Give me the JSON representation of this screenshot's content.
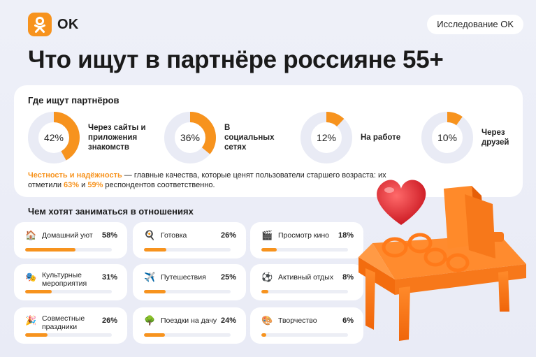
{
  "header": {
    "logo_text": "OK",
    "pill_label": "Исследование OK",
    "title": "Что ищут в партнёре россияне 55+"
  },
  "where_section": {
    "title": "Где ищут партнёров"
  },
  "note": {
    "hl1": "Честность и надёжность",
    "t1": " — главные качества, которые ценят пользователи старшего возраста: их отметили ",
    "hl2": "63%",
    "t2": " и ",
    "hl3": "59%",
    "t3": " респондентов соответственно."
  },
  "activities_section": {
    "title": "Чем хотят заниматься в отношениях"
  },
  "colors": {
    "accent": "#f7931e",
    "track": "#e9ebf5",
    "background": "#eceef8"
  },
  "chart_data": [
    {
      "type": "pie",
      "title": "Где ищут партнёров",
      "categories": [
        "Через сайты и приложения знакомств",
        "В социальных сетях",
        "На работе",
        "Через друзей"
      ],
      "values": [
        42,
        36,
        12,
        10
      ],
      "value_labels": [
        "42%",
        "36%",
        "12%",
        "10%"
      ],
      "unit": "%"
    },
    {
      "type": "bar",
      "title": "Чем хотят заниматься в отношениях",
      "categories": [
        "Домашний уют",
        "Готовка",
        "Просмотр кино",
        "Культурные мероприятия",
        "Путешествия",
        "Активный отдых",
        "Совместные праздники",
        "Поездки на дачу",
        "Творчество"
      ],
      "values": [
        58,
        26,
        18,
        31,
        25,
        8,
        26,
        24,
        6
      ],
      "value_labels": [
        "58%",
        "26%",
        "18%",
        "31%",
        "25%",
        "8%",
        "26%",
        "24%",
        "6%"
      ],
      "icons": [
        "house-icon",
        "frying-pan-icon",
        "clapper-board-icon",
        "theater-masks-icon",
        "airplane-icon",
        "soccer-ball-icon",
        "party-popper-icon",
        "tree-icon",
        "palette-icon"
      ],
      "unit": "%",
      "ylim": [
        0,
        100
      ]
    }
  ]
}
